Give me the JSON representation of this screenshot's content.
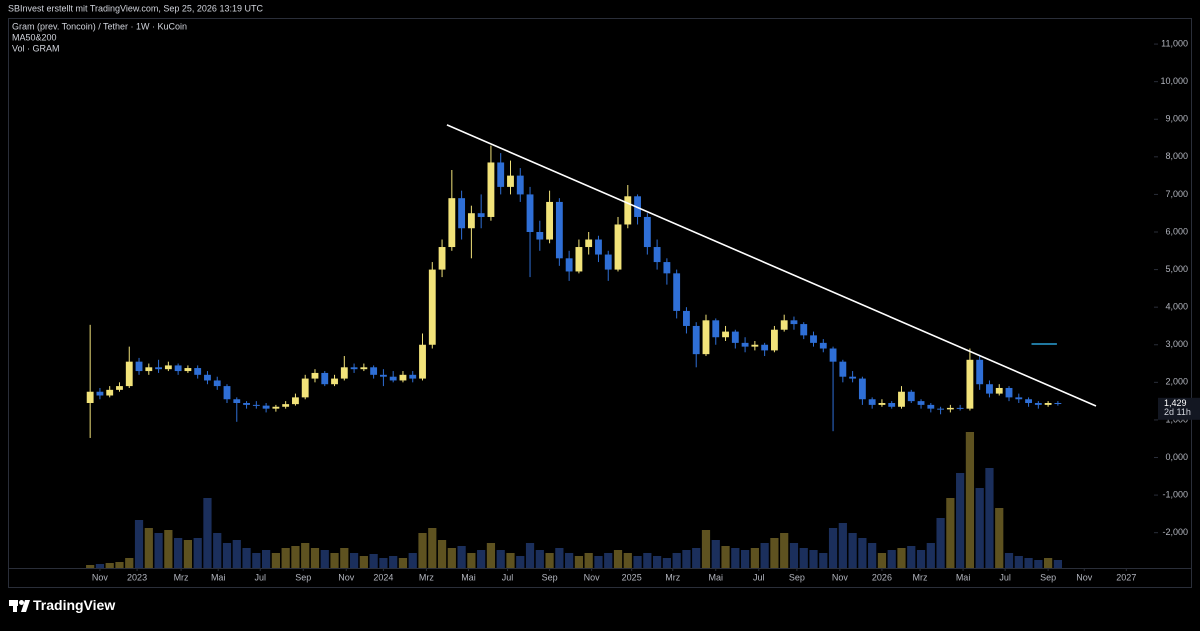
{
  "chart_data": {
    "type": "candlestick",
    "attribution": "SBInvest erstellt mit TradingView.com, Sep 25, 2026 13:19 UTC",
    "title": "Gram (prev. Toncoin) / Tether · 1W · KuCoin",
    "indicators": [
      "MA50&200",
      "Vol · GRAM"
    ],
    "brand": "TradingView",
    "last_price": {
      "value": 1.429,
      "label": "1,429"
    },
    "countdown": "2d 11h",
    "up_color": "#f2e37a",
    "down_color": "#2f6fd6",
    "volume_up_color": "#5e5220",
    "volume_down_color": "#1b2f5c",
    "trendline": {
      "color": "#ffffff",
      "x": [
        36.5,
        102.9
      ],
      "y": [
        8.85,
        1.37
      ]
    },
    "alert_line": {
      "color": "#2a9fd6",
      "x": [
        96.3,
        98.9
      ],
      "y": 3.02
    },
    "xlim": [
      -8.2,
      107.4
    ],
    "ylim": [
      -2.94,
      11.96
    ],
    "xticks": [
      {
        "value": 1.0,
        "label": "Nov"
      },
      {
        "value": 4.8,
        "label": "2023"
      },
      {
        "value": 9.3,
        "label": "Mrz"
      },
      {
        "value": 13.1,
        "label": "Mai"
      },
      {
        "value": 17.4,
        "label": "Jul"
      },
      {
        "value": 21.8,
        "label": "Sep"
      },
      {
        "value": 26.2,
        "label": "Nov"
      },
      {
        "value": 30.0,
        "label": "2024"
      },
      {
        "value": 34.4,
        "label": "Mrz"
      },
      {
        "value": 38.7,
        "label": "Mai"
      },
      {
        "value": 42.7,
        "label": "Jul"
      },
      {
        "value": 47.0,
        "label": "Sep"
      },
      {
        "value": 51.3,
        "label": "Nov"
      },
      {
        "value": 55.4,
        "label": "2025"
      },
      {
        "value": 59.6,
        "label": "Mrz"
      },
      {
        "value": 64.0,
        "label": "Mai"
      },
      {
        "value": 68.4,
        "label": "Jul"
      },
      {
        "value": 72.3,
        "label": "Sep"
      },
      {
        "value": 76.7,
        "label": "Nov"
      },
      {
        "value": 81.0,
        "label": "2026"
      },
      {
        "value": 84.9,
        "label": "Mrz"
      },
      {
        "value": 89.3,
        "label": "Mai"
      },
      {
        "value": 93.6,
        "label": "Jul"
      },
      {
        "value": 98.0,
        "label": "Sep"
      },
      {
        "value": 101.7,
        "label": "Nov"
      },
      {
        "value": 106.0,
        "label": "2027"
      }
    ],
    "yticks": [
      {
        "value": 11,
        "label": "11,000"
      },
      {
        "value": 10,
        "label": "10,000"
      },
      {
        "value": 9,
        "label": "9,000"
      },
      {
        "value": 8,
        "label": "8,000"
      },
      {
        "value": 7,
        "label": "7,000"
      },
      {
        "value": 6,
        "label": "6,000"
      },
      {
        "value": 5,
        "label": "5,000"
      },
      {
        "value": 4,
        "label": "4,000"
      },
      {
        "value": 3,
        "label": "3,000"
      },
      {
        "value": 2,
        "label": "2,000"
      },
      {
        "value": 1,
        "label": "1,000"
      },
      {
        "value": 0,
        "label": "0,000"
      },
      {
        "value": -1,
        "label": "-1,000"
      },
      {
        "value": -2,
        "label": "-2,000"
      }
    ],
    "open": [
      1.45,
      1.75,
      1.65,
      1.8,
      1.9,
      2.55,
      2.3,
      2.4,
      2.35,
      2.45,
      2.3,
      2.38,
      2.2,
      2.05,
      1.9,
      1.55,
      1.45,
      1.4,
      1.38,
      1.3,
      1.35,
      1.42,
      1.6,
      2.1,
      2.25,
      1.95,
      2.1,
      2.4,
      2.35,
      2.4,
      2.2,
      2.15,
      2.05,
      2.2,
      2.1,
      3.0,
      5.0,
      5.6,
      6.9,
      6.1,
      6.5,
      6.4,
      7.85,
      7.2,
      7.5,
      7.0,
      6.0,
      5.8,
      6.8,
      5.3,
      4.95,
      5.6,
      5.8,
      5.4,
      5.0,
      6.2,
      6.95,
      6.4,
      5.6,
      5.2,
      4.9,
      3.9,
      3.5,
      2.75,
      3.65,
      3.2,
      3.35,
      3.05,
      2.95,
      3.0,
      2.85,
      3.4,
      3.65,
      3.55,
      3.25,
      3.05,
      2.9,
      2.55,
      2.15,
      2.1,
      1.55,
      1.4,
      1.45,
      1.35,
      1.75,
      1.5,
      1.4,
      1.3,
      1.28,
      1.32,
      1.3,
      2.6,
      1.95,
      1.7,
      1.85,
      1.6,
      1.55,
      1.45,
      1.4,
      1.45
    ],
    "high": [
      3.53,
      1.85,
      1.9,
      2.0,
      2.95,
      2.65,
      2.5,
      2.6,
      2.55,
      2.5,
      2.45,
      2.45,
      2.3,
      2.15,
      1.95,
      1.6,
      1.5,
      1.5,
      1.45,
      1.4,
      1.5,
      1.7,
      2.2,
      2.35,
      2.3,
      2.2,
      2.7,
      2.5,
      2.5,
      2.45,
      2.35,
      2.3,
      2.3,
      2.3,
      3.3,
      5.2,
      5.8,
      7.65,
      7.1,
      6.7,
      7.0,
      8.3,
      8.1,
      7.9,
      7.7,
      7.2,
      6.3,
      7.1,
      6.9,
      5.5,
      5.8,
      6.0,
      5.9,
      5.5,
      6.4,
      7.25,
      7.0,
      6.5,
      5.8,
      5.3,
      5.0,
      4.0,
      3.6,
      3.8,
      3.7,
      3.5,
      3.4,
      3.2,
      3.1,
      3.05,
      3.5,
      3.8,
      3.75,
      3.6,
      3.35,
      3.15,
      2.95,
      2.6,
      2.3,
      2.15,
      1.6,
      1.55,
      1.5,
      1.9,
      1.8,
      1.55,
      1.45,
      1.35,
      1.4,
      1.4,
      2.9,
      2.7,
      2.05,
      1.95,
      1.9,
      1.7,
      1.6,
      1.5,
      1.5,
      1.5
    ],
    "low": [
      0.52,
      1.55,
      1.6,
      1.75,
      1.85,
      2.2,
      2.2,
      2.25,
      2.3,
      2.2,
      2.25,
      2.1,
      1.95,
      1.8,
      1.45,
      0.95,
      1.3,
      1.3,
      1.2,
      1.22,
      1.3,
      1.38,
      1.55,
      2.0,
      1.9,
      1.9,
      2.05,
      2.25,
      2.3,
      2.1,
      1.9,
      2.0,
      2.0,
      2.0,
      2.05,
      2.9,
      4.8,
      5.5,
      5.8,
      5.3,
      6.1,
      6.3,
      7.0,
      7.0,
      6.8,
      4.8,
      5.5,
      5.7,
      5.1,
      4.7,
      4.9,
      5.4,
      5.2,
      4.7,
      4.95,
      6.1,
      6.2,
      5.4,
      5.0,
      4.6,
      3.7,
      3.3,
      2.4,
      2.7,
      3.0,
      3.1,
      2.9,
      2.8,
      2.85,
      2.7,
      2.8,
      3.35,
      3.4,
      3.15,
      2.95,
      2.8,
      0.7,
      2.0,
      2.0,
      1.4,
      1.3,
      1.35,
      1.3,
      1.3,
      1.45,
      1.3,
      1.2,
      1.15,
      1.2,
      1.25,
      1.25,
      1.8,
      1.6,
      1.65,
      1.5,
      1.45,
      1.35,
      1.3,
      1.35,
      1.38
    ],
    "close": [
      1.75,
      1.65,
      1.8,
      1.9,
      2.55,
      2.3,
      2.4,
      2.35,
      2.45,
      2.3,
      2.38,
      2.2,
      2.05,
      1.9,
      1.55,
      1.45,
      1.4,
      1.38,
      1.3,
      1.35,
      1.42,
      1.6,
      2.1,
      2.25,
      1.95,
      2.1,
      2.4,
      2.35,
      2.4,
      2.2,
      2.15,
      2.05,
      2.2,
      2.1,
      3.0,
      5.0,
      5.6,
      6.9,
      6.1,
      6.5,
      6.4,
      7.85,
      7.2,
      7.5,
      7.0,
      6.0,
      5.8,
      6.8,
      5.3,
      4.95,
      5.6,
      5.8,
      5.4,
      5.0,
      6.2,
      6.95,
      6.4,
      5.6,
      5.2,
      4.9,
      3.9,
      3.5,
      2.75,
      3.65,
      3.2,
      3.35,
      3.05,
      2.95,
      3.0,
      2.85,
      3.4,
      3.65,
      3.55,
      3.25,
      3.05,
      2.9,
      2.55,
      2.15,
      2.1,
      1.55,
      1.4,
      1.45,
      1.35,
      1.75,
      1.5,
      1.4,
      1.3,
      1.28,
      1.32,
      1.3,
      2.6,
      1.95,
      1.7,
      1.85,
      1.6,
      1.55,
      1.45,
      1.4,
      1.45,
      1.429
    ],
    "volume": [
      3,
      4,
      5,
      6,
      10,
      48,
      40,
      35,
      38,
      30,
      28,
      30,
      70,
      35,
      25,
      28,
      20,
      15,
      18,
      15,
      20,
      22,
      25,
      20,
      18,
      15,
      20,
      15,
      12,
      14,
      10,
      12,
      10,
      15,
      35,
      40,
      28,
      20,
      22,
      15,
      18,
      25,
      18,
      15,
      12,
      25,
      18,
      15,
      20,
      15,
      12,
      15,
      12,
      15,
      18,
      15,
      12,
      15,
      12,
      10,
      15,
      18,
      20,
      38,
      28,
      22,
      20,
      18,
      20,
      25,
      30,
      35,
      25,
      20,
      18,
      15,
      40,
      45,
      35,
      30,
      25,
      15,
      18,
      20,
      22,
      18,
      25,
      50,
      70,
      95,
      136,
      80,
      100,
      60,
      15,
      12,
      10,
      8,
      10,
      8
    ]
  }
}
